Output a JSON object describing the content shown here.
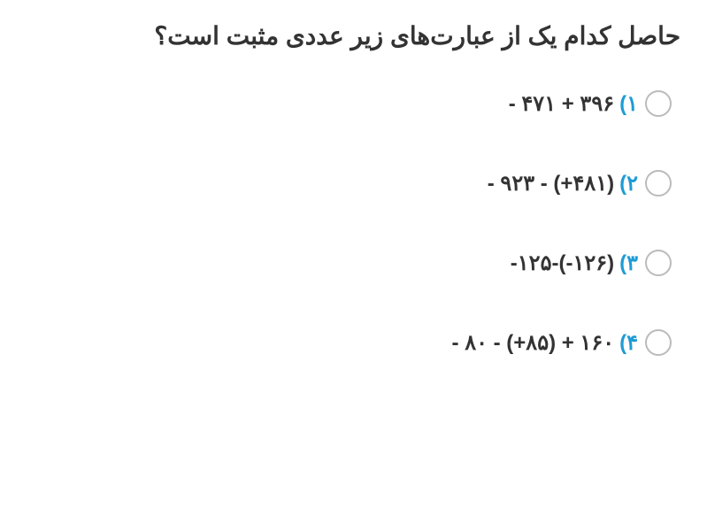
{
  "question": {
    "text": "حاصل کدام یک از عبارت‌های زیر عددی مثبت است؟",
    "font_size": 28,
    "color": "#333333"
  },
  "options": [
    {
      "number": "۱)",
      "expression": "- ۴۷۱ + ۳۹۶"
    },
    {
      "number": "۲)",
      "expression": "- ۹۲۳ - (+۴۸۱)"
    },
    {
      "number": "۳)",
      "expression": "-۱۲۵-(-۱۲۶)"
    },
    {
      "number": "۴)",
      "expression": "- ۸۰ - (+۸۵) + ۱۶۰"
    }
  ],
  "styling": {
    "background_color": "#ffffff",
    "text_color": "#333333",
    "number_color": "#1e9bd6",
    "radio_border_color": "#bbbbbb",
    "option_font_size": 24,
    "option_spacing": 60
  }
}
